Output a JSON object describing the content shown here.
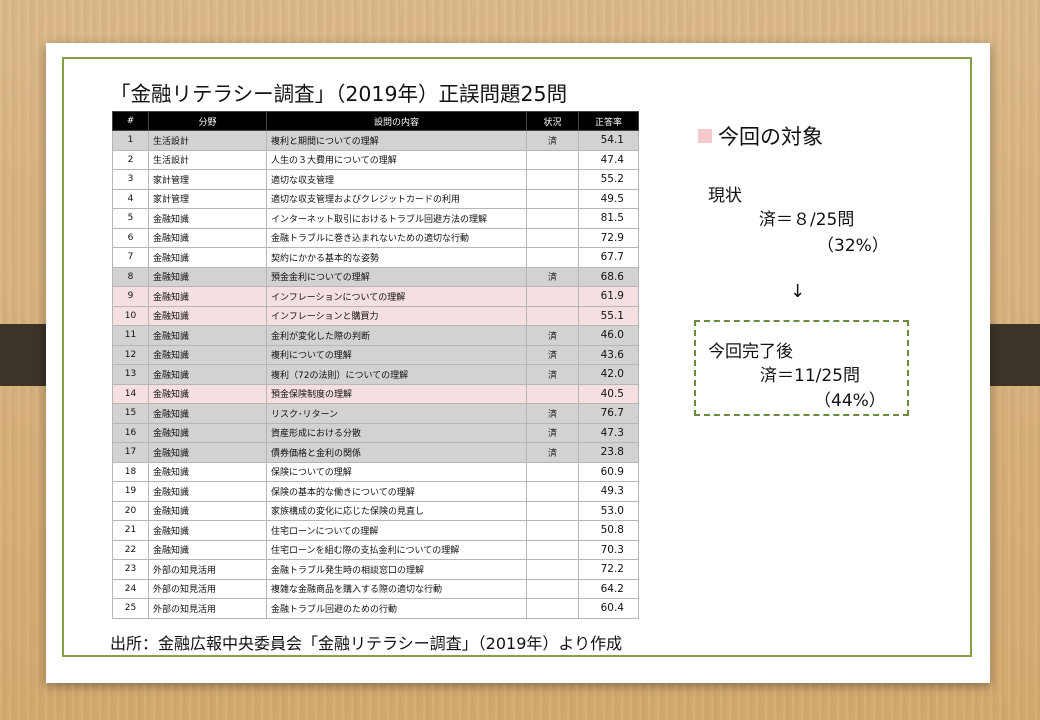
{
  "slide": {
    "title": "「金融リテラシー調査」（2019年）正誤問題25問",
    "source": "出所：金融広報中央委員会「金融リテラシー調査」（2019年）より作成"
  },
  "table": {
    "headers": [
      "#",
      "分野",
      "設問の内容",
      "状況",
      "正答率"
    ],
    "rows": [
      {
        "no": "1",
        "field": "生活設計",
        "content": "複利と期間についての理解",
        "status": "済",
        "rate": "54.1",
        "state": "done"
      },
      {
        "no": "2",
        "field": "生活設計",
        "content": "人生の３大費用についての理解",
        "status": "",
        "rate": "47.4",
        "state": "normal"
      },
      {
        "no": "3",
        "field": "家計管理",
        "content": "適切な収支管理",
        "status": "",
        "rate": "55.2",
        "state": "normal"
      },
      {
        "no": "4",
        "field": "家計管理",
        "content": "適切な収支管理およびクレジットカードの利用",
        "status": "",
        "rate": "49.5",
        "state": "normal"
      },
      {
        "no": "5",
        "field": "金融知識",
        "content": "インターネット取引におけるトラブル回避方法の理解",
        "status": "",
        "rate": "81.5",
        "state": "normal"
      },
      {
        "no": "6",
        "field": "金融知識",
        "content": "金融トラブルに巻き込まれないための適切な行動",
        "status": "",
        "rate": "72.9",
        "state": "normal"
      },
      {
        "no": "7",
        "field": "金融知識",
        "content": "契約にかかる基本的な姿勢",
        "status": "",
        "rate": "67.7",
        "state": "normal"
      },
      {
        "no": "8",
        "field": "金融知識",
        "content": "預金金利についての理解",
        "status": "済",
        "rate": "68.6",
        "state": "done"
      },
      {
        "no": "9",
        "field": "金融知識",
        "content": "インフレーションについての理解",
        "status": "",
        "rate": "61.9",
        "state": "target"
      },
      {
        "no": "10",
        "field": "金融知識",
        "content": "インフレーションと購買力",
        "status": "",
        "rate": "55.1",
        "state": "target"
      },
      {
        "no": "11",
        "field": "金融知識",
        "content": "金利が変化した際の判断",
        "status": "済",
        "rate": "46.0",
        "state": "done"
      },
      {
        "no": "12",
        "field": "金融知識",
        "content": "複利についての理解",
        "status": "済",
        "rate": "43.6",
        "state": "done"
      },
      {
        "no": "13",
        "field": "金融知識",
        "content": "複利（72の法則）についての理解",
        "status": "済",
        "rate": "42.0",
        "state": "done"
      },
      {
        "no": "14",
        "field": "金融知識",
        "content": "預金保険制度の理解",
        "status": "",
        "rate": "40.5",
        "state": "target"
      },
      {
        "no": "15",
        "field": "金融知識",
        "content": "リスク･リターン",
        "status": "済",
        "rate": "76.7",
        "state": "done"
      },
      {
        "no": "16",
        "field": "金融知識",
        "content": "資産形成における分散",
        "status": "済",
        "rate": "47.3",
        "state": "done"
      },
      {
        "no": "17",
        "field": "金融知識",
        "content": "債券価格と金利の関係",
        "status": "済",
        "rate": "23.8",
        "state": "done"
      },
      {
        "no": "18",
        "field": "金融知識",
        "content": "保険についての理解",
        "status": "",
        "rate": "60.9",
        "state": "normal"
      },
      {
        "no": "19",
        "field": "金融知識",
        "content": "保険の基本的な働きについての理解",
        "status": "",
        "rate": "49.3",
        "state": "normal"
      },
      {
        "no": "20",
        "field": "金融知識",
        "content": "家族構成の変化に応じた保険の見直し",
        "status": "",
        "rate": "53.0",
        "state": "normal"
      },
      {
        "no": "21",
        "field": "金融知識",
        "content": "住宅ローンについての理解",
        "status": "",
        "rate": "50.8",
        "state": "normal"
      },
      {
        "no": "22",
        "field": "金融知識",
        "content": "住宅ローンを組む際の支払金利についての理解",
        "status": "",
        "rate": "70.3",
        "state": "normal"
      },
      {
        "no": "23",
        "field": "外部の知見活用",
        "content": "金融トラブル発生時の相談窓口の理解",
        "status": "",
        "rate": "72.2",
        "state": "normal"
      },
      {
        "no": "24",
        "field": "外部の知見活用",
        "content": "複雑な金融商品を購入する際の適切な行動",
        "status": "",
        "rate": "64.2",
        "state": "normal"
      },
      {
        "no": "25",
        "field": "外部の知見活用",
        "content": "金融トラブル回避のための行動",
        "status": "",
        "rate": "60.4",
        "state": "normal"
      }
    ]
  },
  "side": {
    "legend_label": "今回の対象",
    "legend_color": "#f3c9cc",
    "current_label": "現状",
    "current_value": "済＝８/25問",
    "current_pct": "（32%）",
    "arrow": "↓",
    "after_label": "今回完了後",
    "after_value": "済＝11/25問",
    "after_pct": "（44%）"
  },
  "colors": {
    "frame": "#86a04a",
    "done_row": "#d2d2d2",
    "target_row": "#f6dfe0",
    "header_bg": "#000000"
  }
}
